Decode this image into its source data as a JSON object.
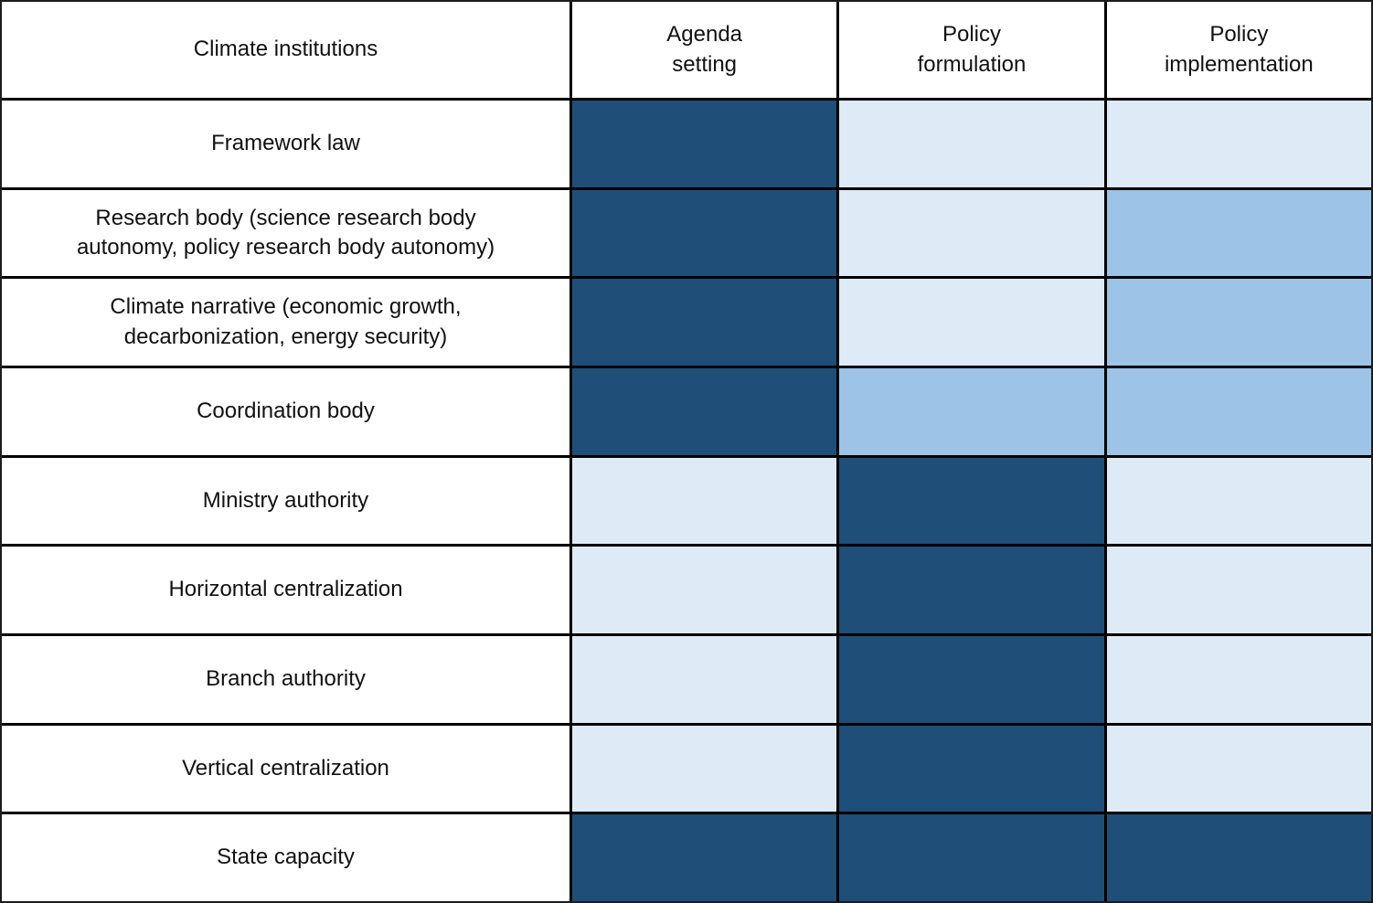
{
  "chart_data": {
    "type": "heatmap",
    "corner_label": "Climate institutions",
    "columns": [
      {
        "key": "agenda-setting",
        "label": "Agenda setting",
        "lines": [
          "Agenda",
          "setting"
        ]
      },
      {
        "key": "policy-formulation",
        "label": "Policy formulation",
        "lines": [
          "Policy",
          "formulation"
        ]
      },
      {
        "key": "policy-implementation",
        "label": "Policy implementation",
        "lines": [
          "Policy",
          "implementation"
        ]
      }
    ],
    "levels": [
      "low",
      "medium",
      "high"
    ],
    "palette": {
      "high": "#1F4E79",
      "medium": "#9DC3E6",
      "low": "#DEEAF6"
    },
    "grid_color": "#000000",
    "border_color": "#1c1c1c",
    "background": "#ffffff",
    "text_color": "#111111",
    "rows": [
      {
        "key": "framework-law",
        "label": "Framework law",
        "cells": [
          "high",
          "low",
          "low"
        ]
      },
      {
        "key": "research-body",
        "label": "Research body (science research body autonomy, policy research body autonomy)",
        "cells": [
          "high",
          "low",
          "medium"
        ]
      },
      {
        "key": "climate-narrative",
        "label": "Climate narrative (economic growth, decarbonization, energy security)",
        "cells": [
          "high",
          "low",
          "medium"
        ]
      },
      {
        "key": "coordination-body",
        "label": "Coordination body",
        "cells": [
          "high",
          "medium",
          "medium"
        ]
      },
      {
        "key": "ministry-authority",
        "label": "Ministry authority",
        "cells": [
          "low",
          "high",
          "low"
        ]
      },
      {
        "key": "horizontal-centralization",
        "label": "Horizontal centralization",
        "cells": [
          "low",
          "high",
          "low"
        ]
      },
      {
        "key": "branch-authority",
        "label": "Branch authority",
        "cells": [
          "low",
          "high",
          "low"
        ]
      },
      {
        "key": "vertical-centralization",
        "label": "Vertical centralization",
        "cells": [
          "low",
          "high",
          "low"
        ]
      },
      {
        "key": "state-capacity",
        "label": "State capacity",
        "cells": [
          "high",
          "high",
          "high"
        ]
      }
    ]
  }
}
